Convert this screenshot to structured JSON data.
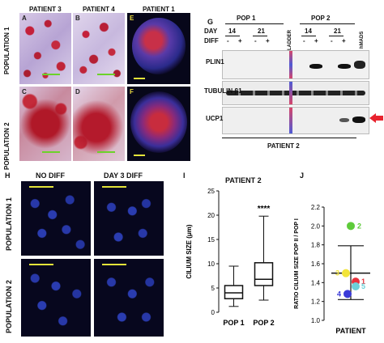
{
  "panelA": {
    "header_patient3": "PATIENT 3",
    "header_patient4": "PATIENT 4",
    "header_patient1": "PATIENT 1",
    "row1_label": "POPULATION 1",
    "row2_label": "POPULATION 2",
    "letters": [
      "A",
      "B",
      "E",
      "C",
      "D",
      "F"
    ]
  },
  "panelG": {
    "letter": "G",
    "pop1": "POP 1",
    "pop2": "POP 2",
    "day_label": "DAY",
    "diff_label": "DIFF",
    "days": [
      "14",
      "21",
      "14",
      "21"
    ],
    "diff_signs": [
      "-",
      "+",
      "-",
      "+",
      "-",
      "+",
      "-",
      "+"
    ],
    "ladder": "LADDER",
    "hmads": "hMADS",
    "rows": [
      "PLIN1",
      "TUBULIN β1",
      "UCP1"
    ],
    "footer": "PATIENT 2"
  },
  "panelH": {
    "letter": "H",
    "no_diff": "NO DIFF",
    "day3_diff": "DAY 3 DIFF",
    "row1_label": "POPULATION 1",
    "row2_label": "POPULATION 2"
  },
  "panelI": {
    "letter": "I",
    "title": "PATIENT 2",
    "significance": "****"
  },
  "panelJ": {
    "letter": "J",
    "xlabel": "PATIENT"
  },
  "chart_data": [
    {
      "type": "box",
      "title": "PATIENT 2",
      "ylabel": "CILIUM SIZE (μm)",
      "xlabel": "",
      "categories": [
        "POP 1",
        "POP 2"
      ],
      "boxes": [
        {
          "min": 1.2,
          "q1": 2.8,
          "median": 4.0,
          "q3": 5.5,
          "max": 9.5
        },
        {
          "min": 2.5,
          "q1": 5.5,
          "median": 6.8,
          "q3": 10.2,
          "max": 19.8
        }
      ],
      "annotation": "****",
      "ylim": [
        0,
        25
      ],
      "yticks": [
        0,
        5,
        10,
        15,
        20,
        25
      ]
    },
    {
      "type": "scatter",
      "ylabel": "RATIO CILIUM SIZE POP II / POP I",
      "xlabel": "PATIENT",
      "ylim": [
        1.0,
        2.2
      ],
      "yticks": [
        1.0,
        1.2,
        1.4,
        1.6,
        1.8,
        2.0,
        2.2
      ],
      "points": [
        {
          "label": "1",
          "y": 1.41,
          "color": "#e8323c"
        },
        {
          "label": "2",
          "y": 2.0,
          "color": "#5ecb3a"
        },
        {
          "label": "3",
          "y": 1.5,
          "color": "#f2e43a"
        },
        {
          "label": "4",
          "y": 1.28,
          "color": "#3a3ad8"
        },
        {
          "label": "5",
          "y": 1.36,
          "color": "#6cd0d8"
        }
      ],
      "mean": 1.5,
      "error_upper": 1.79,
      "error_lower": 1.22
    }
  ]
}
